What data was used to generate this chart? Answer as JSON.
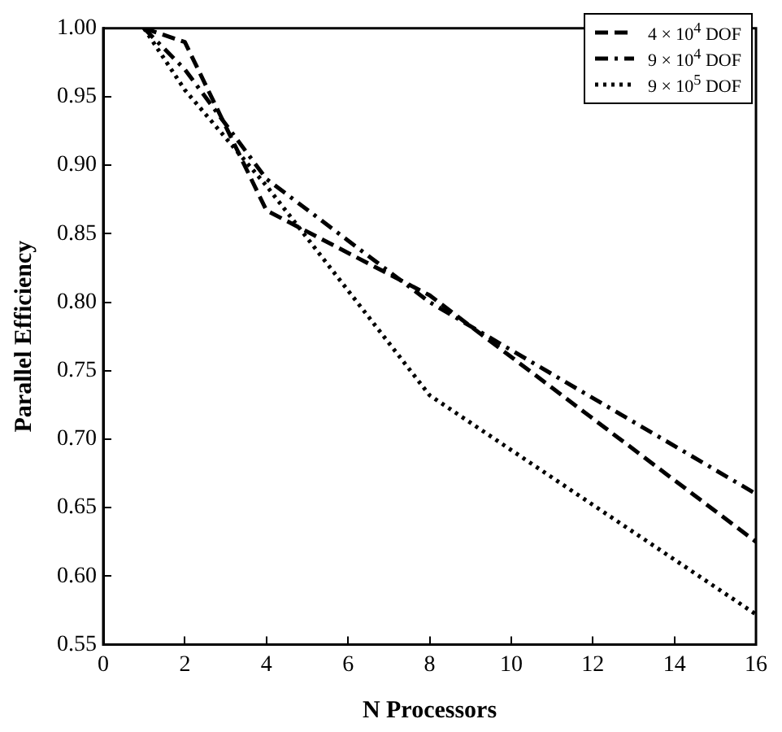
{
  "chart_data": {
    "type": "line",
    "xlabel": "N Processors",
    "ylabel": "Parallel Efficiency",
    "xlim": [
      0,
      16
    ],
    "xticks": [
      0,
      2,
      4,
      6,
      8,
      10,
      12,
      14,
      16
    ],
    "ylim": [
      0.55,
      1.0
    ],
    "yticks": [
      {
        "value": 0.55,
        "label": "0.55"
      },
      {
        "value": 0.6,
        "label": "0.60"
      },
      {
        "value": 0.65,
        "label": "0.65"
      },
      {
        "value": 0.7,
        "label": "0.70"
      },
      {
        "value": 0.75,
        "label": "0.75"
      },
      {
        "value": 0.8,
        "label": "0.80"
      },
      {
        "value": 0.85,
        "label": "0.85"
      },
      {
        "value": 0.9,
        "label": "0.90"
      },
      {
        "value": 0.95,
        "label": "0.95"
      },
      {
        "value": 1.0,
        "label": "1.00"
      }
    ],
    "x": [
      1,
      2,
      4,
      8,
      16
    ],
    "grid": false,
    "legend": "top right",
    "marker": "none",
    "series": [
      {
        "name": "4 × 10$^{4}$ DOF",
        "color": "#000000",
        "line_style": "dashed",
        "values": [
          1.0,
          0.99,
          0.867,
          0.805,
          0.625
        ]
      },
      {
        "name": "9 × 10$^{4}$ DOF",
        "color": "#000000",
        "line_style": "dashdot",
        "values": [
          1.0,
          0.97,
          0.89,
          0.8,
          0.66
        ]
      },
      {
        "name": "9 × 10$^{5}$ DOF",
        "color": "#000000",
        "line_style": "dotted",
        "values": [
          1.0,
          0.955,
          0.885,
          0.732,
          0.572
        ]
      }
    ]
  }
}
